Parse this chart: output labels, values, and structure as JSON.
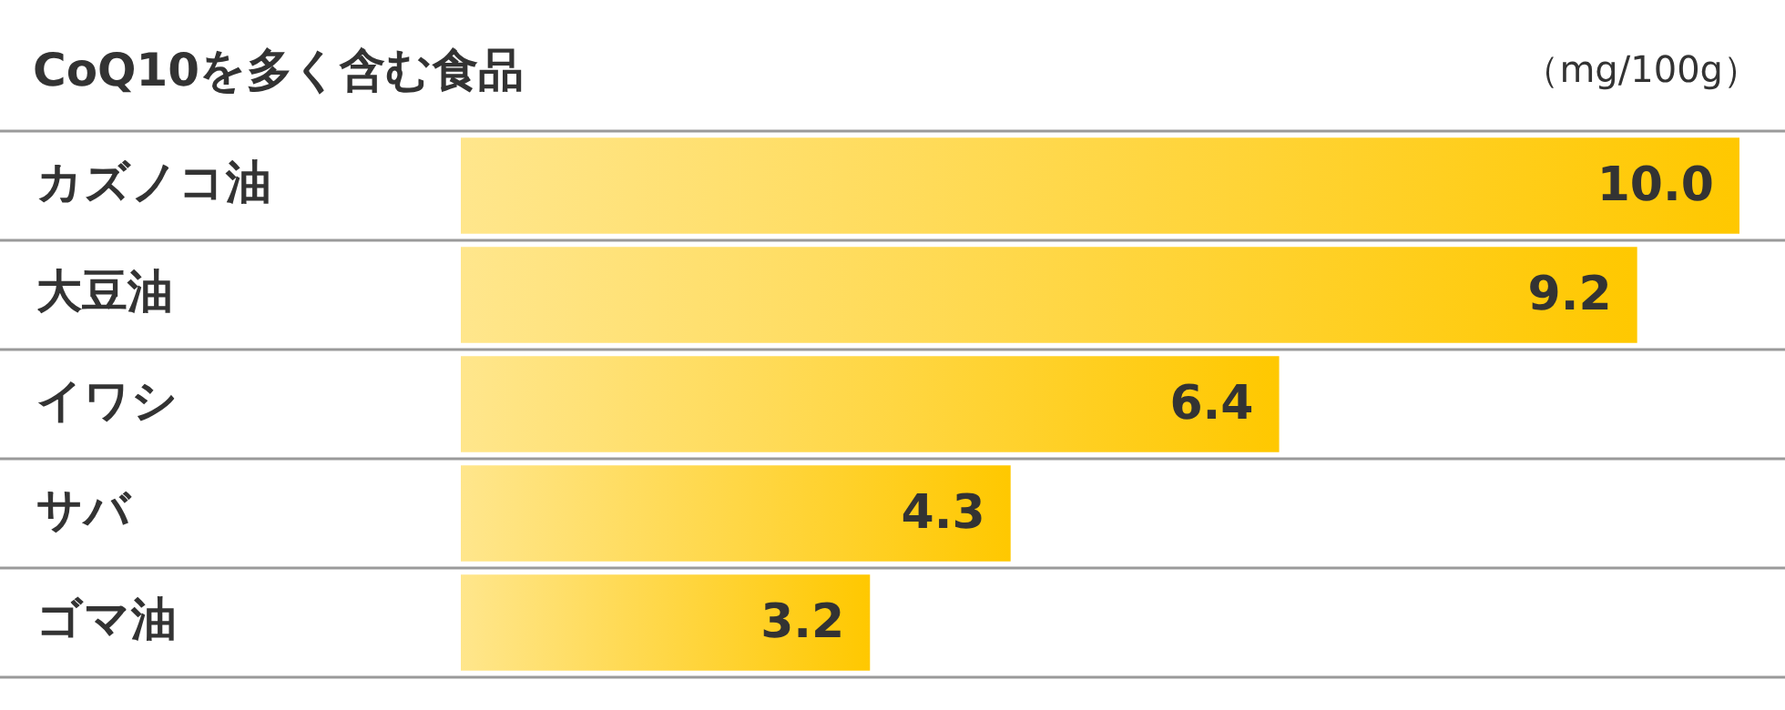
{
  "chart_data": {
    "type": "bar",
    "orientation": "horizontal",
    "title": "CoQ10を多く含む食品",
    "annotations": [
      "（mg/100g）"
    ],
    "categories": [
      "カズノコ油",
      "大豆油",
      "イワシ",
      "サバ",
      "ゴマ油"
    ],
    "values": [
      10.0,
      9.2,
      6.4,
      4.3,
      3.2
    ],
    "color": "#ffc800",
    "value_labels": [
      "10.0",
      "9.2",
      "6.4",
      "4.3",
      "3.2"
    ],
    "xlim": [
      0,
      10
    ],
    "tick_labels": "y",
    "grid": "y",
    "legend": false
  }
}
